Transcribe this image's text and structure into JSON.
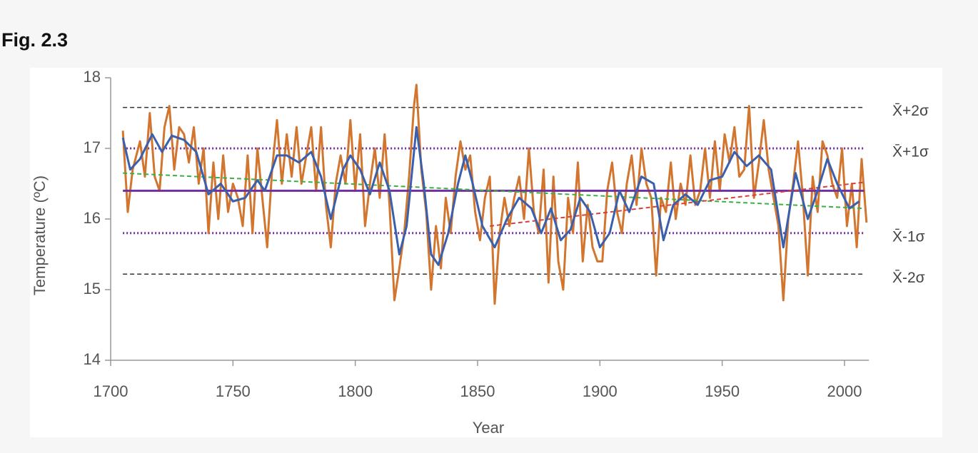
{
  "figure_label": "Fig. 2.3",
  "chart_data": {
    "type": "line",
    "x_label": "Year",
    "y_label": "Temperature (ºC)",
    "xlim": [
      1700,
      2010
    ],
    "xticks": [
      1700,
      1750,
      1800,
      1850,
      1900,
      1950,
      2000
    ],
    "ylim": [
      14,
      18
    ],
    "yticks": [
      14,
      15,
      16,
      17,
      18
    ],
    "series": [
      {
        "name": "X̄+2σ",
        "color": "#333333",
        "style": "dashed",
        "x": [
          1705,
          2008
        ],
        "values": [
          17.58,
          17.58
        ]
      },
      {
        "name": "X̄+1σ",
        "color": "#7030a0",
        "style": "dotted",
        "x": [
          1705,
          2008
        ],
        "values": [
          17.0,
          17.0
        ]
      },
      {
        "name": "X̄-1σ",
        "color": "#7030a0",
        "style": "dotted",
        "x": [
          1705,
          2008
        ],
        "values": [
          15.8,
          15.8
        ]
      },
      {
        "name": "X̄-2σ",
        "color": "#333333",
        "style": "dashed",
        "x": [
          1705,
          2008
        ],
        "values": [
          15.22,
          15.22
        ]
      },
      {
        "color": "#d2762f",
        "style": "solid",
        "x": [
          1705,
          1707,
          1709,
          1712,
          1714,
          1716,
          1718,
          1720,
          1722,
          1724,
          1726,
          1728,
          1730,
          1732,
          1734,
          1736,
          1738,
          1740,
          1742,
          1744,
          1746,
          1748,
          1750,
          1752,
          1754,
          1756,
          1758,
          1760,
          1762,
          1764,
          1766,
          1768,
          1770,
          1772,
          1774,
          1776,
          1778,
          1780,
          1782,
          1784,
          1786,
          1788,
          1790,
          1792,
          1794,
          1796,
          1798,
          1800,
          1802,
          1804,
          1806,
          1808,
          1810,
          1812,
          1814,
          1816,
          1818,
          1820,
          1822,
          1824,
          1825,
          1827,
          1829,
          1831,
          1833,
          1835,
          1837,
          1839,
          1841,
          1843,
          1845,
          1847,
          1849,
          1851,
          1853,
          1855,
          1857,
          1859,
          1861,
          1863,
          1865,
          1867,
          1869,
          1871,
          1873,
          1875,
          1877,
          1879,
          1881,
          1883,
          1885,
          1887,
          1889,
          1891,
          1893,
          1895,
          1897,
          1899,
          1901,
          1903,
          1905,
          1907,
          1909,
          1911,
          1913,
          1915,
          1917,
          1919,
          1921,
          1923,
          1925,
          1927,
          1929,
          1931,
          1933,
          1935,
          1937,
          1939,
          1941,
          1943,
          1945,
          1947,
          1949,
          1951,
          1953,
          1955,
          1957,
          1959,
          1961,
          1963,
          1965,
          1967,
          1969,
          1971,
          1973,
          1975,
          1977,
          1979,
          1981,
          1983,
          1985,
          1987,
          1989,
          1991,
          1993,
          1995,
          1997,
          1999,
          2001,
          2003,
          2005,
          2007,
          2009
        ],
        "values": [
          17.25,
          16.1,
          16.7,
          17.1,
          16.6,
          17.5,
          16.6,
          16.4,
          17.3,
          17.6,
          16.7,
          17.3,
          17.2,
          16.8,
          17.3,
          16.5,
          17.0,
          15.8,
          16.8,
          16.0,
          16.9,
          16.1,
          16.5,
          16.3,
          15.9,
          16.9,
          15.8,
          17.0,
          16.3,
          15.6,
          16.7,
          17.4,
          16.5,
          17.2,
          16.6,
          17.3,
          16.5,
          16.9,
          17.3,
          16.4,
          17.3,
          16.2,
          15.6,
          16.5,
          16.9,
          16.5,
          17.4,
          16.4,
          17.2,
          15.9,
          16.5,
          17.0,
          16.3,
          17.2,
          16.2,
          14.85,
          15.3,
          15.8,
          16.6,
          17.6,
          17.9,
          16.7,
          16.1,
          15.0,
          15.9,
          15.3,
          16.3,
          15.8,
          16.6,
          17.1,
          16.7,
          16.9,
          16.1,
          15.7,
          16.3,
          16.6,
          14.8,
          15.8,
          16.3,
          15.9,
          16.3,
          16.6,
          16.0,
          17.0,
          16.1,
          15.8,
          16.7,
          15.1,
          16.6,
          15.4,
          15.0,
          16.3,
          15.8,
          16.8,
          15.4,
          16.2,
          15.6,
          15.4,
          15.4,
          16.4,
          16.8,
          16.1,
          15.8,
          16.5,
          16.9,
          16.2,
          17.0,
          16.5,
          16.3,
          15.2,
          16.3,
          16.1,
          16.8,
          16.0,
          16.5,
          16.2,
          16.9,
          16.2,
          16.4,
          17.0,
          16.3,
          17.1,
          16.4,
          17.2,
          16.8,
          17.3,
          16.6,
          16.7,
          17.6,
          16.3,
          16.8,
          17.4,
          16.7,
          16.3,
          15.9,
          14.85,
          16.0,
          16.5,
          17.1,
          16.3,
          15.2,
          16.6,
          16.1,
          17.1,
          16.9,
          16.5,
          16.3,
          17.0,
          15.9,
          16.5,
          15.6,
          16.85,
          15.95
        ]
      },
      {
        "color": "#7030a0",
        "style": "solid",
        "x": [
          1705,
          2008
        ],
        "values": [
          16.4,
          16.4
        ]
      },
      {
        "color": "#3cb043",
        "style": "dashed",
        "x": [
          1705,
          2008
        ],
        "values": [
          16.65,
          16.15
        ]
      },
      {
        "color": "#d9403a",
        "style": "dashed",
        "x": [
          1855,
          2008
        ],
        "values": [
          15.9,
          16.52
        ]
      },
      {
        "color": "#3a5fad",
        "style": "solid",
        "x": [
          1705,
          1708,
          1712,
          1717,
          1721,
          1725,
          1730,
          1735,
          1740,
          1745,
          1750,
          1755,
          1760,
          1763,
          1768,
          1772,
          1777,
          1782,
          1786,
          1790,
          1795,
          1798,
          1802,
          1806,
          1810,
          1814,
          1818,
          1821,
          1825,
          1828,
          1831,
          1834,
          1838,
          1842,
          1845,
          1848,
          1852,
          1857,
          1862,
          1867,
          1872,
          1876,
          1880,
          1884,
          1888,
          1892,
          1896,
          1900,
          1904,
          1908,
          1912,
          1917,
          1922,
          1926,
          1930,
          1935,
          1940,
          1945,
          1950,
          1955,
          1960,
          1965,
          1970,
          1975,
          1980,
          1985,
          1989,
          1993,
          1997,
          2002,
          2006
        ],
        "values": [
          17.15,
          16.7,
          16.85,
          17.2,
          16.95,
          17.18,
          17.12,
          16.95,
          16.35,
          16.5,
          16.25,
          16.3,
          16.55,
          16.4,
          16.9,
          16.9,
          16.8,
          16.95,
          16.6,
          16.0,
          16.7,
          16.9,
          16.7,
          16.35,
          16.8,
          16.4,
          15.5,
          15.9,
          17.3,
          16.5,
          15.5,
          15.35,
          15.8,
          16.5,
          16.9,
          16.5,
          15.9,
          15.6,
          16.0,
          16.3,
          16.15,
          15.8,
          16.15,
          15.7,
          15.85,
          16.3,
          16.1,
          15.6,
          15.8,
          16.4,
          16.1,
          16.6,
          16.5,
          15.7,
          16.2,
          16.35,
          16.2,
          16.55,
          16.6,
          16.95,
          16.75,
          16.9,
          16.7,
          15.6,
          16.65,
          16.0,
          16.4,
          16.85,
          16.5,
          16.15,
          16.25
        ]
      }
    ]
  }
}
